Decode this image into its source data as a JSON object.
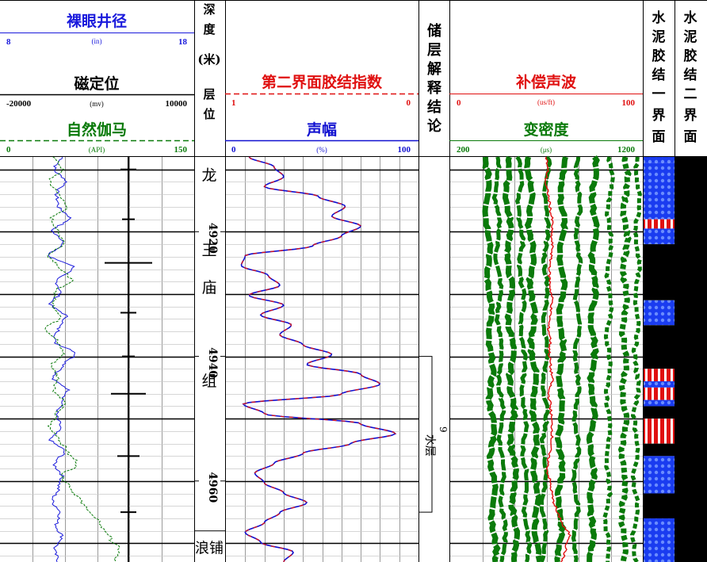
{
  "track1": {
    "caliper": {
      "label": "裸眼井径",
      "unit": "(in)",
      "min": "8",
      "max": "18",
      "color": "#1a1adc"
    },
    "ccl": {
      "label": "磁定位",
      "unit": "(mv)",
      "min": "-20000",
      "max": "10000",
      "color": "#000000"
    },
    "gr": {
      "label": "自然伽马",
      "unit": "(API)",
      "min": "0",
      "max": "150",
      "color": "#0a7a0a"
    }
  },
  "depth_track": {
    "title_chars": [
      "深",
      "度"
    ],
    "unit": "(米)",
    "layer_chars": [
      "层",
      "位"
    ],
    "depth_labels": [
      "4920",
      "4940",
      "4960"
    ],
    "formation_chars": [
      "龙",
      "王",
      "庙",
      "组"
    ],
    "lower_formation": "浪铺"
  },
  "track3": {
    "bond_index": {
      "label": "第二界面胶结指数",
      "min": "1",
      "max": "0",
      "color": "#e01010"
    },
    "amplitude": {
      "label": "声幅",
      "unit": "(%)",
      "min": "0",
      "max": "100",
      "color": "#1010d0"
    }
  },
  "interp_track": {
    "title_chars": [
      "储",
      "层",
      "解",
      "释",
      "结",
      "论"
    ],
    "zone_number": "9",
    "zone_label": "水层"
  },
  "track5": {
    "dt": {
      "label": "补偿声波",
      "unit": "(us/ft)",
      "min": "0",
      "max": "100",
      "color": "#e01010"
    },
    "vdl": {
      "label": "变密度",
      "unit": "(μs)",
      "min": "200",
      "max": "1200",
      "color": "#0a7a0a"
    }
  },
  "cement1": {
    "title_chars": [
      "水",
      "泥",
      "胶",
      "结",
      "一",
      "界",
      "面"
    ]
  },
  "cement2": {
    "title_chars": [
      "水",
      "泥",
      "胶",
      "结",
      "二",
      "界",
      "面"
    ]
  },
  "colors": {
    "good": "#1a3cf0",
    "poor": "#e01010",
    "free": "#000000",
    "grid": "#9a9a9a"
  },
  "chart_data": {
    "type": "well-log",
    "depth_axis": {
      "top": 4908,
      "bottom": 4973,
      "major_ticks": [
        4920,
        4940,
        4960
      ],
      "unit": "米"
    },
    "zones": [
      {
        "name": "龙王庙组",
        "from": 4908,
        "to": 4968
      },
      {
        "name": "浪铺",
        "from": 4968,
        "to": 4973
      }
    ],
    "interpretation": [
      {
        "number": "9",
        "conclusion": "水层",
        "from": 4940,
        "to": 4965
      }
    ],
    "cement_bond_first_interface": [
      {
        "from": 4908,
        "to": 4909,
        "quality": "good"
      },
      {
        "from": 4909,
        "to": 4918,
        "quality": "good"
      },
      {
        "from": 4918,
        "to": 4919.5,
        "quality": "poor"
      },
      {
        "from": 4919.5,
        "to": 4922,
        "quality": "good"
      },
      {
        "from": 4922,
        "to": 4931,
        "quality": "free"
      },
      {
        "from": 4931,
        "to": 4935,
        "quality": "good"
      },
      {
        "from": 4935,
        "to": 4942,
        "quality": "free"
      },
      {
        "from": 4942,
        "to": 4944,
        "quality": "poor"
      },
      {
        "from": 4944,
        "to": 4945,
        "quality": "good"
      },
      {
        "from": 4945,
        "to": 4947,
        "quality": "poor"
      },
      {
        "from": 4947,
        "to": 4948,
        "quality": "good"
      },
      {
        "from": 4948,
        "to": 4950,
        "quality": "free"
      },
      {
        "from": 4950,
        "to": 4954,
        "quality": "poor"
      },
      {
        "from": 4954,
        "to": 4956,
        "quality": "free"
      },
      {
        "from": 4956,
        "to": 4962,
        "quality": "good"
      },
      {
        "from": 4962,
        "to": 4966,
        "quality": "free"
      },
      {
        "from": 4966,
        "to": 4973,
        "quality": "good"
      }
    ],
    "cement_bond_second_interface": [
      {
        "from": 4908,
        "to": 4973,
        "quality": "free"
      }
    ],
    "series": [
      {
        "name": "裸眼井径",
        "values": [
          11.2,
          10.8,
          11.4,
          10.9,
          11.0,
          11.6,
          10.7,
          11.3,
          10.5,
          11.8,
          10.9,
          11.1,
          10.6,
          11.4,
          11.0,
          10.8,
          11.9,
          11.3,
          10.7,
          11.5,
          11.2,
          10.9,
          11.1,
          10.6,
          11.3,
          10.8,
          11.2,
          11.0,
          10.7,
          11.1,
          10.9,
          11.2,
          10.8,
          11.0
        ]
      },
      {
        "name": "自然伽马",
        "values": [
          42,
          48,
          38,
          45,
          52,
          40,
          44,
          50,
          38,
          46,
          55,
          43,
          41,
          47,
          36,
          44,
          49,
          40,
          45,
          42,
          50,
          43,
          38,
          46,
          52,
          60,
          48,
          55,
          62,
          70,
          78,
          85,
          92,
          88
        ]
      },
      {
        "name": "声幅",
        "values": [
          12,
          25,
          30,
          20,
          48,
          62,
          55,
          70,
          60,
          45,
          10,
          8,
          22,
          28,
          12,
          30,
          18,
          34,
          28,
          40,
          55,
          42,
          70,
          80,
          60,
          9,
          20,
          70,
          88,
          65,
          40,
          25,
          15,
          20,
          30,
          42,
          28,
          20,
          10,
          18,
          35,
          30
        ]
      },
      {
        "name": "补偿声波",
        "values": [
          50,
          50.5,
          49.5,
          51,
          52,
          53,
          52.5,
          53,
          52,
          51.5,
          52,
          53,
          52,
          51,
          52,
          51.5,
          52,
          53,
          51,
          52,
          52.5,
          53,
          52.5,
          51,
          50.5,
          52,
          53,
          55,
          58,
          62,
          60,
          58
        ]
      }
    ]
  }
}
